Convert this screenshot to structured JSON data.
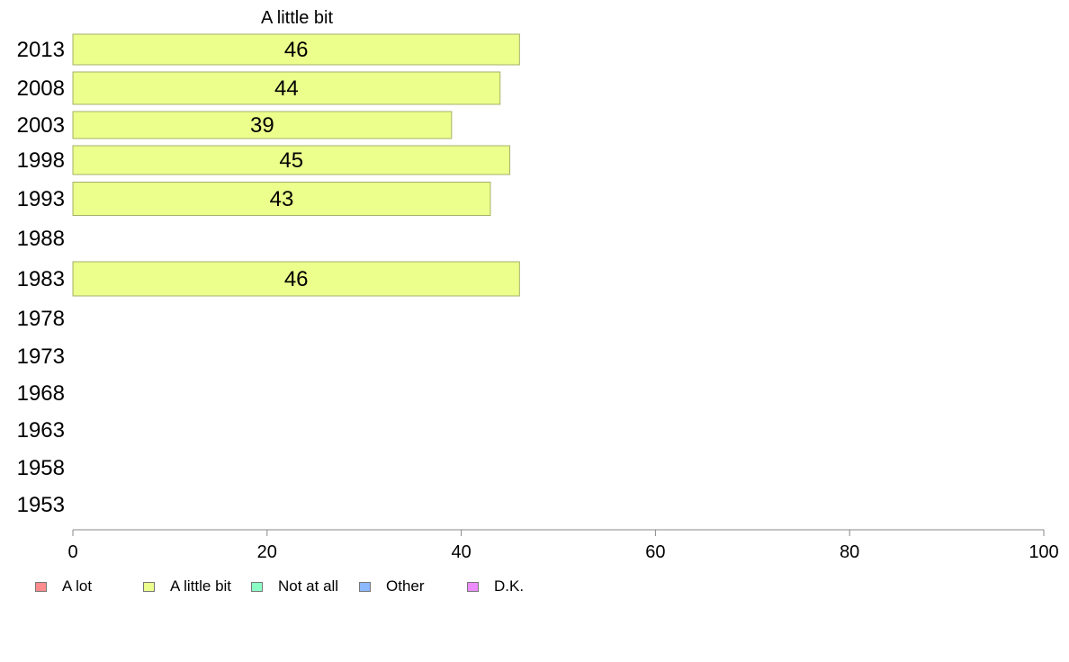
{
  "chart_data": {
    "type": "bar",
    "orientation": "horizontal",
    "title": "A little bit",
    "categories": [
      "2013",
      "2008",
      "2003",
      "1998",
      "1993",
      "1988",
      "1983",
      "1978",
      "1973",
      "1968",
      "1963",
      "1958",
      "1953"
    ],
    "series": [
      {
        "name": "A little bit",
        "values": [
          46,
          44,
          39,
          45,
          43,
          null,
          46,
          null,
          null,
          null,
          null,
          null,
          null
        ]
      }
    ],
    "data_labels": [
      "46",
      "44",
      "39",
      "45",
      "43",
      "",
      "46",
      "",
      "",
      "",
      "",
      "",
      ""
    ],
    "xlim": [
      0,
      100
    ],
    "xticks": [
      "0",
      "20",
      "40",
      "60",
      "80",
      "100"
    ],
    "grid": false,
    "bar_color": "#ecff8c",
    "bar_border_color": "#a3b26a",
    "legend_position": "bottom",
    "legend": [
      {
        "label": "A lot",
        "color": "#ff8c8c"
      },
      {
        "label": "A little bit",
        "color": "#ecff8c"
      },
      {
        "label": "Not at all",
        "color": "#8cffc6"
      },
      {
        "label": "Other",
        "color": "#8cb8ff"
      },
      {
        "label": "D.K.",
        "color": "#ec8cff"
      }
    ]
  }
}
